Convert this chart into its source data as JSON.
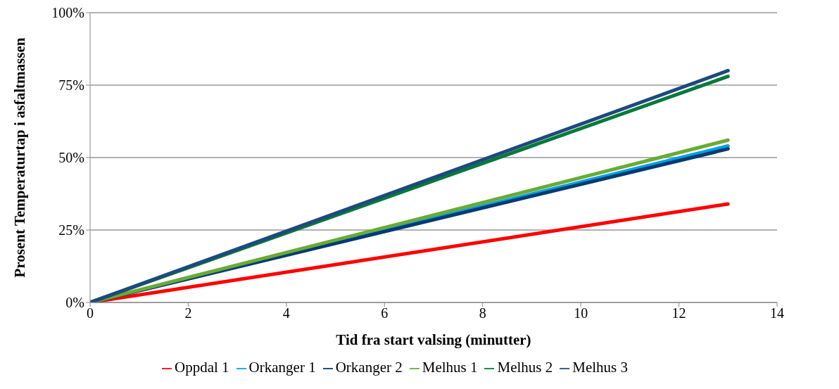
{
  "chart_data": {
    "type": "line",
    "xlabel": "Tid fra start valsing (minutter)",
    "ylabel": "Prosent Temperaturtap i asfaltmassen",
    "x": [
      0,
      13
    ],
    "series": [
      {
        "name": "Oppdal 1",
        "color": "#ff0000",
        "values": [
          0,
          34
        ]
      },
      {
        "name": "Orkanger 1",
        "color": "#00a0e0",
        "values": [
          0,
          54
        ]
      },
      {
        "name": "Orkanger 2",
        "color": "#003b73",
        "values": [
          0,
          53
        ]
      },
      {
        "name": "Melhus 1",
        "color": "#6aaa35",
        "values": [
          0,
          56
        ]
      },
      {
        "name": "Melhus 2",
        "color": "#007a3a",
        "values": [
          0,
          78
        ]
      },
      {
        "name": "Melhus 3",
        "color": "#1f497d",
        "values": [
          0,
          80
        ]
      }
    ],
    "xlim": [
      0,
      14
    ],
    "xticks": [
      0,
      2,
      4,
      6,
      8,
      10,
      12,
      14
    ],
    "ylim": [
      0,
      100
    ],
    "yticks": [
      {
        "value": 0,
        "label": "0%"
      },
      {
        "value": 25,
        "label": "25%"
      },
      {
        "value": 50,
        "label": "50%"
      },
      {
        "value": 75,
        "label": "75%"
      },
      {
        "value": 100,
        "label": "100%"
      }
    ],
    "grid": "y",
    "legend": "bottom",
    "marker": "none",
    "line_style": "solid"
  }
}
